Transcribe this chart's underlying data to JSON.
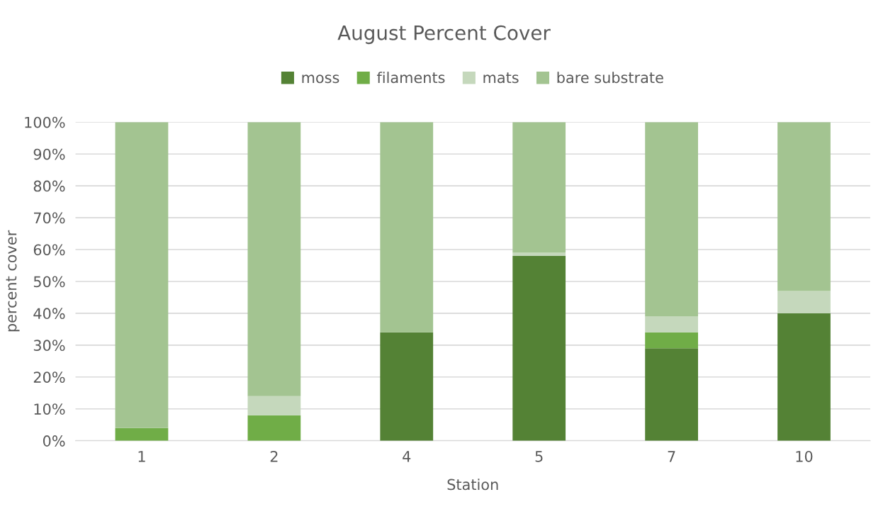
{
  "chart_data": {
    "type": "bar",
    "title": "August Percent Cover",
    "xlabel": "Station",
    "ylabel": "percent cover",
    "categories": [
      "1",
      "2",
      "4",
      "5",
      "7",
      "10"
    ],
    "stacked": true,
    "series": [
      {
        "name": "moss",
        "color": "#548235",
        "values": [
          0,
          0,
          34,
          58,
          29,
          40
        ]
      },
      {
        "name": "filaments",
        "color": "#70ad47",
        "values": [
          4,
          8,
          0,
          0,
          5,
          0
        ]
      },
      {
        "name": "mats",
        "color": "#c5d8bc",
        "values": [
          0,
          6,
          0,
          1,
          5,
          7
        ]
      },
      {
        "name": "bare substrate",
        "color": "#a3c491",
        "values": [
          96,
          86,
          66,
          41,
          61,
          53
        ]
      }
    ],
    "ylim": [
      0,
      100
    ],
    "yticks": [
      {
        "value": 0,
        "label": "0%"
      },
      {
        "value": 10,
        "label": "10%"
      },
      {
        "value": 20,
        "label": "20%"
      },
      {
        "value": 30,
        "label": "30%"
      },
      {
        "value": 40,
        "label": "40%"
      },
      {
        "value": 50,
        "label": "50%"
      },
      {
        "value": 60,
        "label": "60%"
      },
      {
        "value": 70,
        "label": "70%"
      },
      {
        "value": 80,
        "label": "80%"
      },
      {
        "value": 90,
        "label": "90%"
      },
      {
        "value": 100,
        "label": "100%"
      }
    ],
    "grid": "y",
    "legend": "top"
  }
}
